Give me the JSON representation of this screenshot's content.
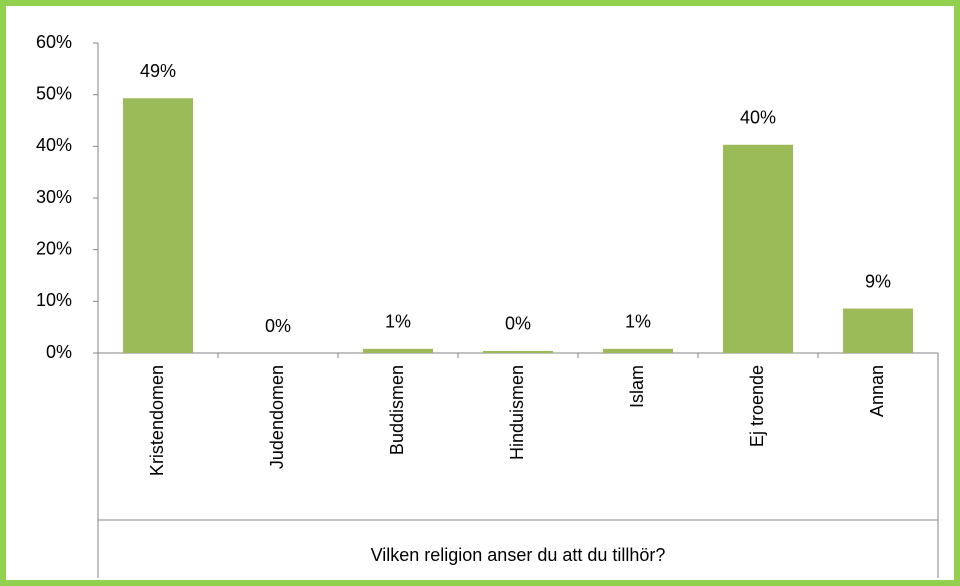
{
  "chart_data": {
    "type": "bar",
    "x_label": "Vilken religion anser du att du tillhör?",
    "categories": [
      "Kristendomen",
      "Judendomen",
      "Buddismen",
      "Hinduismen",
      "Islam",
      "Ej troende",
      "Annan"
    ],
    "values": [
      49.3,
      0,
      0.8,
      0.4,
      0.8,
      40.3,
      8.6
    ],
    "value_labels": [
      "49%",
      "0%",
      "1%",
      "0%",
      "1%",
      "40%",
      "9%"
    ],
    "color": "#9bbb59",
    "ylim": [
      0,
      60
    ],
    "yticks": [
      {
        "value": 0,
        "label": "0%"
      },
      {
        "value": 10,
        "label": "10%"
      },
      {
        "value": 20,
        "label": "20%"
      },
      {
        "value": 30,
        "label": "30%"
      },
      {
        "value": 40,
        "label": "40%"
      },
      {
        "value": 50,
        "label": "50%"
      },
      {
        "value": 60,
        "label": "60%"
      }
    ],
    "grid": false
  }
}
